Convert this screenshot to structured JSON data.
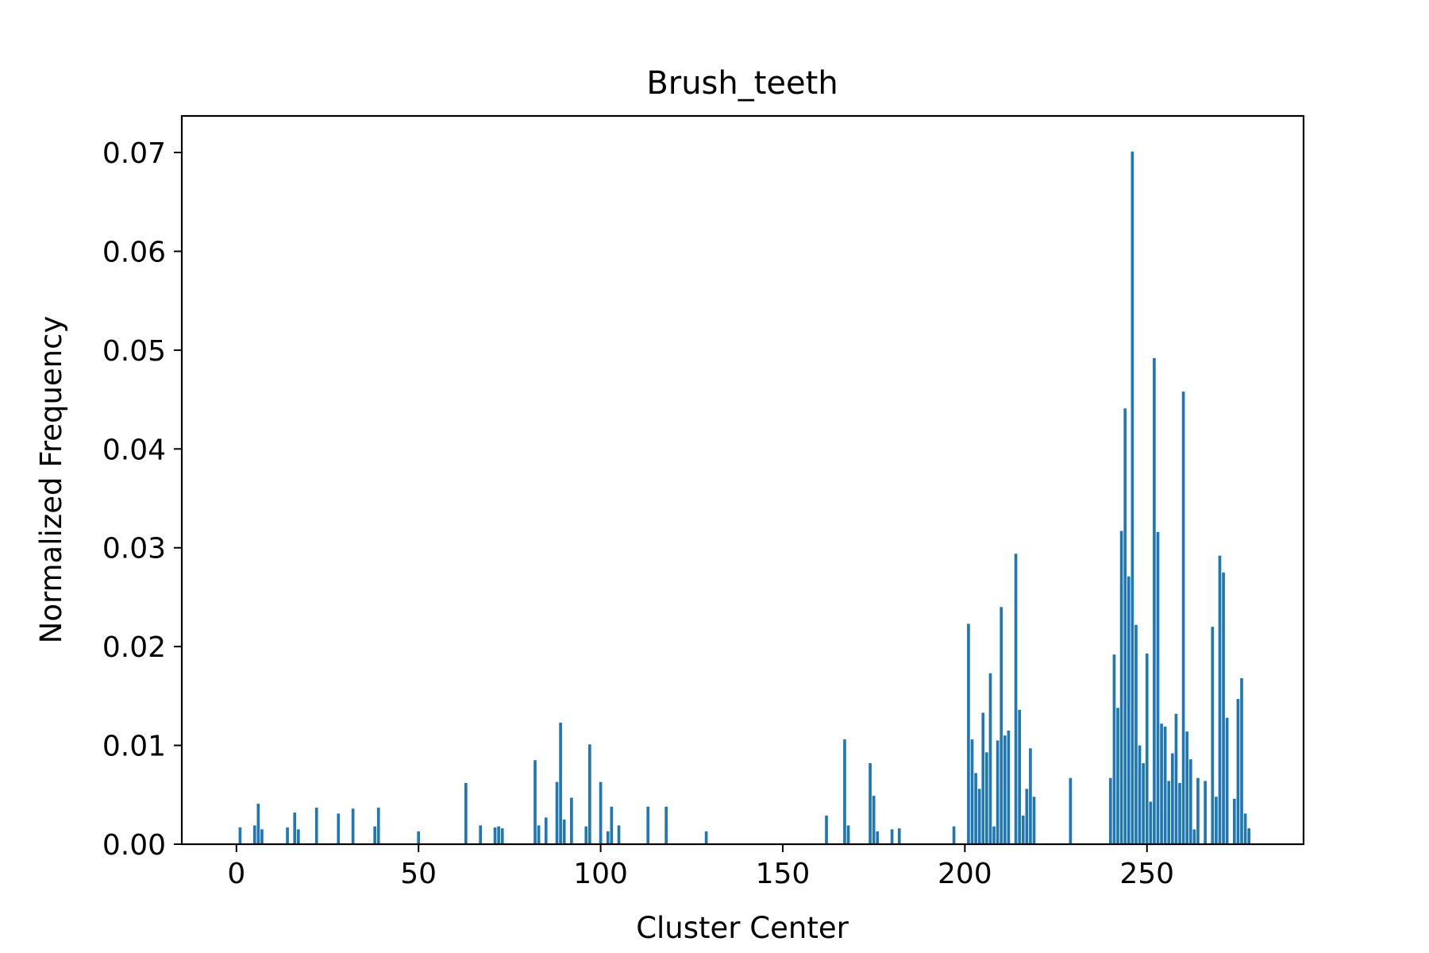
{
  "chart_data": {
    "type": "bar",
    "title": "Brush_teeth",
    "xlabel": "Cluster Center",
    "ylabel": "Normalized Frequency",
    "xlim": [
      -15,
      293
    ],
    "ylim": [
      0,
      0.0737
    ],
    "xticks": [
      {
        "value": 0,
        "label": "0"
      },
      {
        "value": 50,
        "label": "50"
      },
      {
        "value": 100,
        "label": "100"
      },
      {
        "value": 150,
        "label": "150"
      },
      {
        "value": 200,
        "label": "200"
      },
      {
        "value": 250,
        "label": "250"
      }
    ],
    "yticks": [
      {
        "value": 0.0,
        "label": "0.00"
      },
      {
        "value": 0.01,
        "label": "0.01"
      },
      {
        "value": 0.02,
        "label": "0.02"
      },
      {
        "value": 0.03,
        "label": "0.03"
      },
      {
        "value": 0.04,
        "label": "0.04"
      },
      {
        "value": 0.05,
        "label": "0.05"
      },
      {
        "value": 0.06,
        "label": "0.06"
      },
      {
        "value": 0.07,
        "label": "0.07"
      }
    ],
    "bar_color": "#1f77b4",
    "grid": false,
    "x": [
      1,
      5,
      6,
      7,
      14,
      16,
      17,
      22,
      28,
      32,
      38,
      39,
      50,
      63,
      67,
      71,
      72,
      73,
      82,
      83,
      85,
      88,
      89,
      90,
      92,
      96,
      97,
      100,
      102,
      103,
      105,
      113,
      118,
      129,
      162,
      167,
      168,
      174,
      175,
      176,
      180,
      182,
      197,
      201,
      202,
      203,
      204,
      205,
      206,
      207,
      208,
      209,
      210,
      211,
      212,
      214,
      215,
      216,
      217,
      218,
      219,
      229,
      240,
      241,
      242,
      243,
      244,
      245,
      246,
      247,
      248,
      249,
      250,
      251,
      252,
      253,
      254,
      255,
      256,
      257,
      258,
      259,
      260,
      261,
      262,
      263,
      264,
      266,
      268,
      269,
      270,
      271,
      272,
      274,
      275,
      276,
      277,
      278
    ],
    "values": [
      0.0017,
      0.0019,
      0.0041,
      0.0015,
      0.0017,
      0.0032,
      0.0015,
      0.0037,
      0.0031,
      0.0036,
      0.0018,
      0.0037,
      0.0013,
      0.0062,
      0.0019,
      0.0017,
      0.0018,
      0.0016,
      0.0085,
      0.0019,
      0.0027,
      0.0063,
      0.0123,
      0.0025,
      0.0047,
      0.0018,
      0.0101,
      0.0063,
      0.0013,
      0.0038,
      0.0019,
      0.0038,
      0.0038,
      0.0013,
      0.0029,
      0.0106,
      0.0019,
      0.0082,
      0.0049,
      0.0013,
      0.0015,
      0.0016,
      0.0018,
      0.0223,
      0.0106,
      0.0072,
      0.0056,
      0.0133,
      0.0093,
      0.0173,
      0.0018,
      0.0105,
      0.024,
      0.011,
      0.0115,
      0.0294,
      0.0136,
      0.0029,
      0.0056,
      0.0097,
      0.0048,
      0.0067,
      0.0067,
      0.0192,
      0.0138,
      0.0317,
      0.0441,
      0.0271,
      0.0701,
      0.0222,
      0.01,
      0.0082,
      0.0193,
      0.0043,
      0.0492,
      0.0316,
      0.0122,
      0.0119,
      0.0064,
      0.0092,
      0.0132,
      0.0062,
      0.0458,
      0.0114,
      0.0086,
      0.0015,
      0.0067,
      0.0064,
      0.022,
      0.0048,
      0.0292,
      0.0275,
      0.0128,
      0.0046,
      0.0147,
      0.0168,
      0.0031,
      0.0016
    ]
  }
}
